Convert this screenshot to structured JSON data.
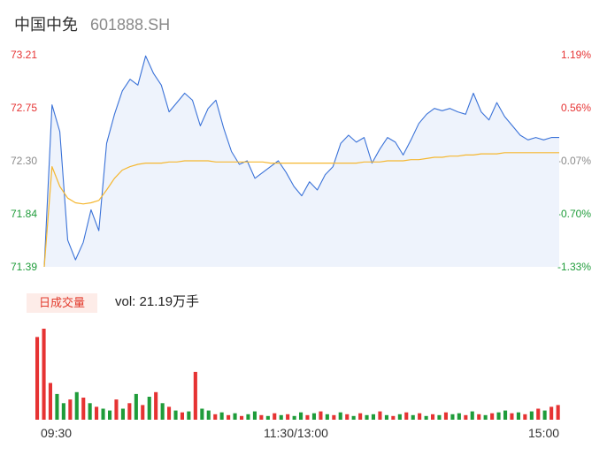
{
  "header": {
    "name": "中国中免",
    "code": "601888.SH"
  },
  "price_axis": [
    "73.21",
    "72.75",
    "72.30",
    "71.84",
    "71.39"
  ],
  "pct_axis": [
    "1.19%",
    "0.56%",
    "-0.07%",
    "-0.70%",
    "-1.33%"
  ],
  "volume": {
    "tag": "日成交量",
    "text": "vol: 21.19万手"
  },
  "time_axis": [
    "09:30",
    "11:30/13:00",
    "15:00"
  ],
  "colors": {
    "price_line": "#3a72d8",
    "price_fill": "#eef3fc",
    "avg_line": "#f5b730",
    "up": "#e63333",
    "down": "#1f9c3a",
    "flat": "#8a8a8a"
  },
  "chart_data": {
    "type": "line",
    "x_range": [
      "09:30",
      "15:00"
    ],
    "ylim": [
      71.39,
      73.21
    ],
    "pct_range": [
      -1.33,
      1.19
    ],
    "price": [
      71.39,
      72.78,
      72.55,
      71.62,
      71.45,
      71.6,
      71.88,
      71.7,
      72.45,
      72.7,
      72.9,
      73.0,
      72.95,
      73.2,
      73.05,
      72.95,
      72.72,
      72.8,
      72.88,
      72.82,
      72.6,
      72.75,
      72.82,
      72.58,
      72.38,
      72.27,
      72.3,
      72.15,
      72.2,
      72.25,
      72.3,
      72.2,
      72.08,
      72.0,
      72.12,
      72.05,
      72.18,
      72.25,
      72.45,
      72.52,
      72.46,
      72.5,
      72.28,
      72.4,
      72.5,
      72.46,
      72.35,
      72.48,
      72.62,
      72.7,
      72.75,
      72.73,
      72.75,
      72.72,
      72.7,
      72.88,
      72.72,
      72.65,
      72.8,
      72.68,
      72.6,
      72.52,
      72.48,
      72.5,
      72.48,
      72.5,
      72.5
    ],
    "avg": [
      71.39,
      72.25,
      72.08,
      71.98,
      71.94,
      71.93,
      71.94,
      71.96,
      72.05,
      72.15,
      72.22,
      72.25,
      72.27,
      72.28,
      72.28,
      72.28,
      72.29,
      72.29,
      72.3,
      72.3,
      72.3,
      72.3,
      72.29,
      72.29,
      72.29,
      72.29,
      72.29,
      72.29,
      72.29,
      72.28,
      72.28,
      72.28,
      72.28,
      72.28,
      72.28,
      72.28,
      72.28,
      72.28,
      72.28,
      72.28,
      72.28,
      72.29,
      72.29,
      72.29,
      72.3,
      72.3,
      72.3,
      72.31,
      72.31,
      72.32,
      72.33,
      72.33,
      72.34,
      72.34,
      72.35,
      72.35,
      72.36,
      72.36,
      72.36,
      72.37,
      72.37,
      72.37,
      72.37,
      72.37,
      72.37,
      72.37,
      72.37
    ],
    "volume": [
      90,
      99,
      40,
      28,
      18,
      22,
      30,
      24,
      18,
      14,
      12,
      10,
      22,
      12,
      18,
      28,
      16,
      25,
      30,
      18,
      14,
      10,
      8,
      9,
      52,
      12,
      10,
      6,
      8,
      5,
      7,
      4,
      6,
      9,
      5,
      4,
      7,
      5,
      6,
      4,
      8,
      5,
      7,
      9,
      6,
      5,
      8,
      6,
      4,
      7,
      5,
      6,
      9,
      5,
      4,
      6,
      8,
      5,
      7,
      4,
      6,
      5,
      8,
      6,
      7,
      5,
      9,
      6,
      5,
      7,
      8,
      10,
      7,
      8,
      6,
      9,
      12,
      10,
      14,
      16
    ],
    "volume_colors": [
      "up",
      "up",
      "up",
      "down",
      "down",
      "up",
      "down",
      "up",
      "down",
      "up",
      "down",
      "down",
      "up",
      "down",
      "up",
      "down",
      "up",
      "down",
      "up",
      "down",
      "up",
      "down",
      "up",
      "down",
      "up",
      "down",
      "down",
      "up",
      "down",
      "up",
      "down",
      "up",
      "down",
      "down",
      "up",
      "down",
      "up",
      "down",
      "up",
      "down",
      "down",
      "up",
      "down",
      "up",
      "down",
      "up",
      "down",
      "up",
      "down",
      "up",
      "down",
      "down",
      "up",
      "down",
      "up",
      "down",
      "up",
      "down",
      "up",
      "down",
      "up",
      "down",
      "up",
      "down",
      "down",
      "up",
      "down",
      "up",
      "down",
      "up",
      "down",
      "down",
      "up",
      "down",
      "up",
      "down",
      "up",
      "down",
      "up",
      "up"
    ]
  }
}
